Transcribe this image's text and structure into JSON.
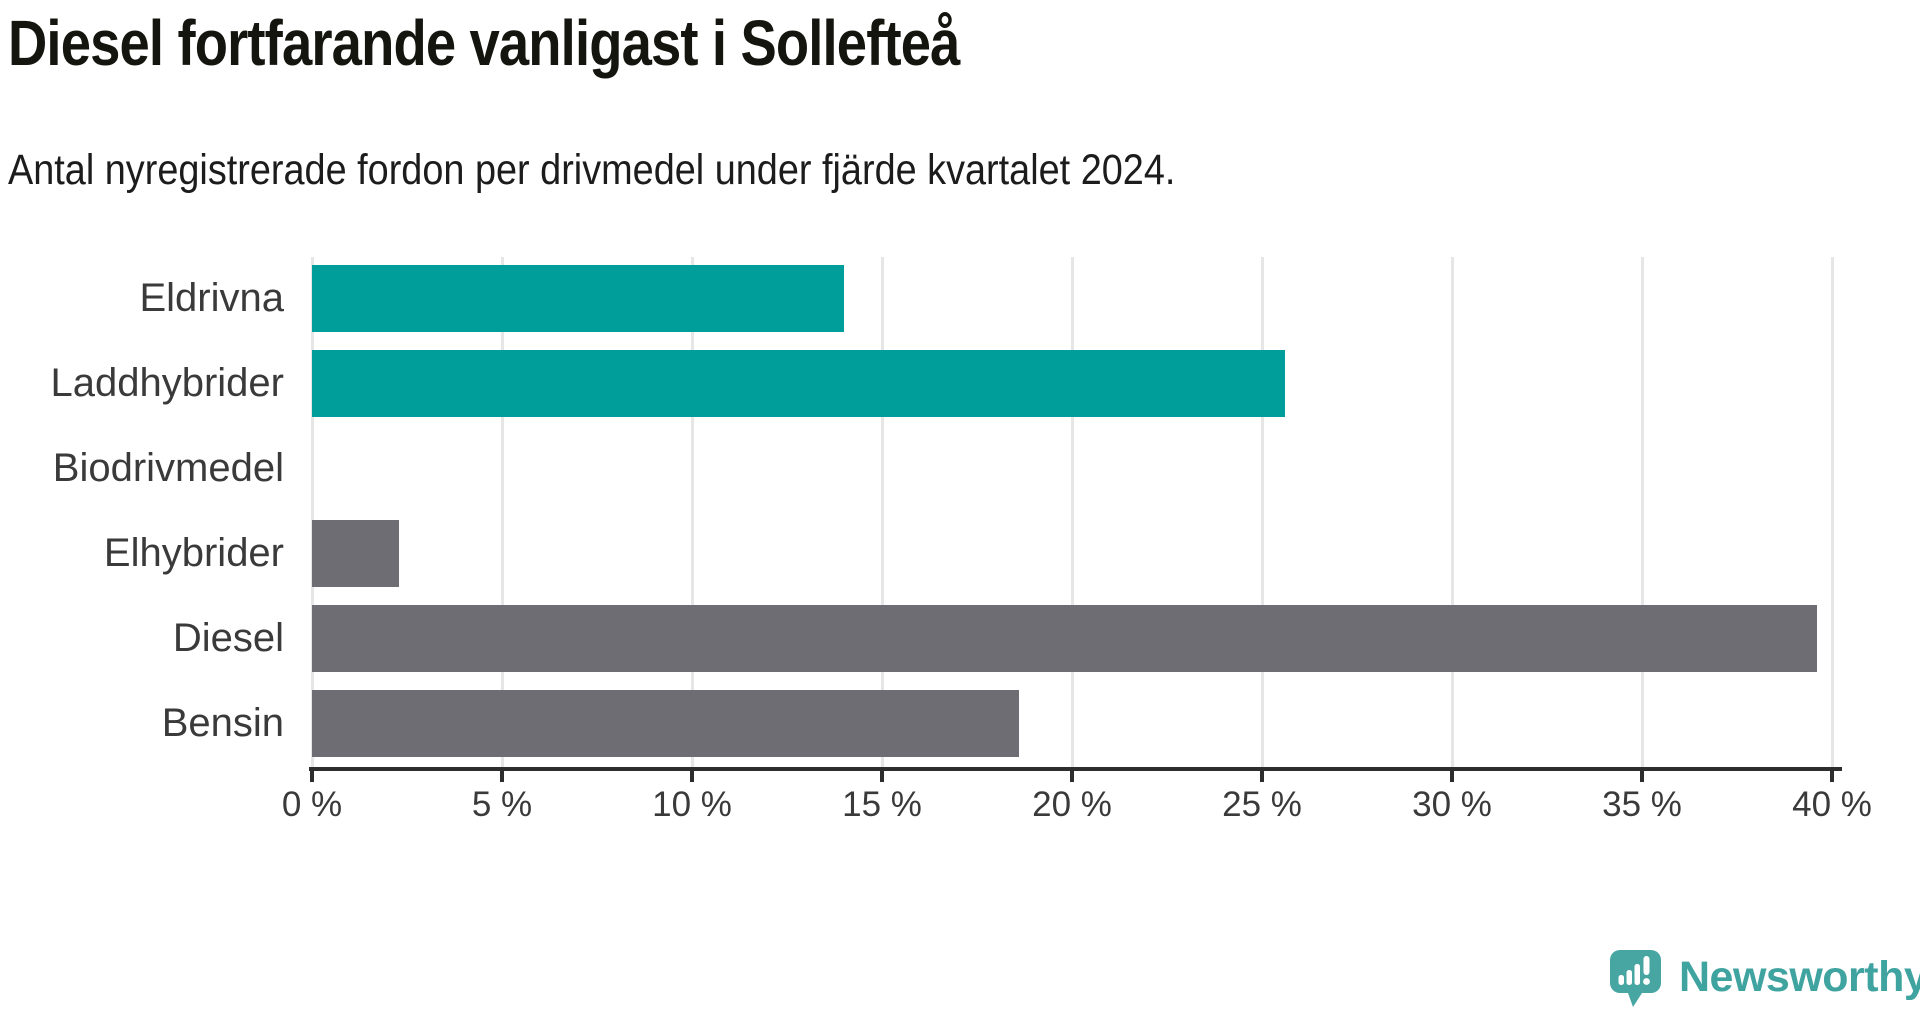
{
  "header": {
    "title": "Diesel fortfarande vanligast i Sollefteå",
    "subtitle": "Antal nyregistrerade fordon per drivmedel under fjärde kvartalet 2024."
  },
  "chart_data": {
    "type": "bar",
    "orientation": "horizontal",
    "title": "Diesel fortfarande vanligast i Sollefteå",
    "subtitle": "Antal nyregistrerade fordon per drivmedel under fjärde kvartalet 2024.",
    "categories": [
      "Eldrivna",
      "Laddhybrider",
      "Biodrivmedel",
      "Elhybrider",
      "Diesel",
      "Bensin"
    ],
    "values": [
      14.0,
      25.6,
      0,
      2.3,
      39.6,
      18.6
    ],
    "unit": "%",
    "bar_colors": [
      "#009e9b",
      "#009e9b",
      "#6e6d73",
      "#6e6d73",
      "#6e6d73",
      "#6e6d73"
    ],
    "xlim": [
      0,
      40
    ],
    "x_ticks": [
      {
        "value": 0,
        "label": "0 %"
      },
      {
        "value": 5,
        "label": "5 %"
      },
      {
        "value": 10,
        "label": "10 %"
      },
      {
        "value": 15,
        "label": "15 %"
      },
      {
        "value": 20,
        "label": "20 %"
      },
      {
        "value": 25,
        "label": "25 %"
      },
      {
        "value": 30,
        "label": "30 %"
      },
      {
        "value": 35,
        "label": "35 %"
      },
      {
        "value": 40,
        "label": "40 %"
      }
    ],
    "grid": true,
    "legend": false
  },
  "branding": {
    "name": "Newsworthy",
    "icon": "newsworthy-speech-bubble-bar-chart-icon",
    "icon_color": "#47a5a2",
    "text_color": "#3fa3a0"
  },
  "colors": {
    "accent_teal": "#009e9b",
    "neutral_gray": "#6e6d73",
    "gridline": "#e6e6e6",
    "axis": "#2d2d2d",
    "label_text": "#3a3a3a",
    "title_text": "#15150f",
    "background": "#ffffff"
  }
}
